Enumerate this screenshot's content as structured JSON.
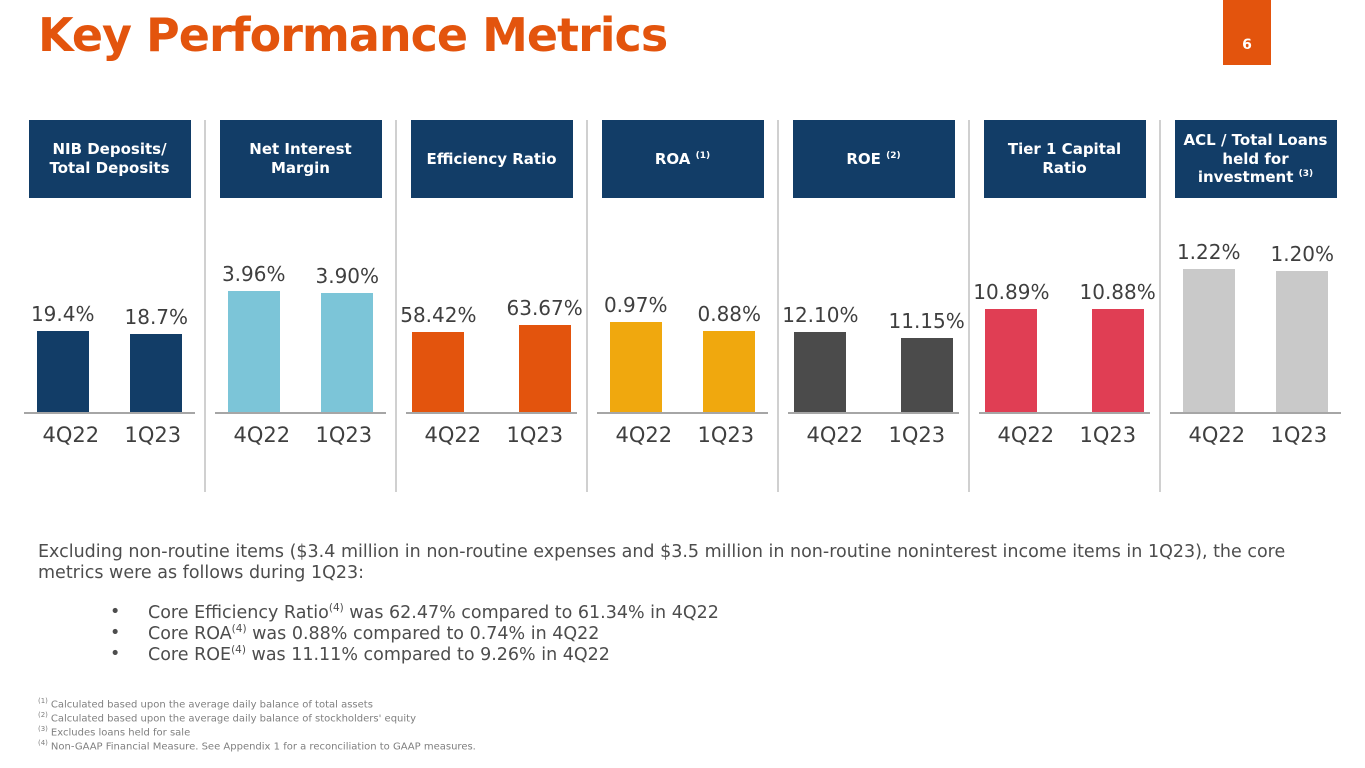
{
  "slide": {
    "title": "Key Performance Metrics",
    "page_number": "6",
    "accent_color": "#E3540D",
    "header_bg_color": "#123D67"
  },
  "chart_data": [
    {
      "type": "bar",
      "title": "NIB Deposits/ Total Deposits",
      "title_sup": "",
      "categories": [
        "4Q22",
        "1Q23"
      ],
      "values": [
        19.4,
        18.7
      ],
      "labels": [
        "19.4%",
        "18.7%"
      ],
      "bar_color": "#123D67",
      "ylim": [
        0,
        36
      ],
      "grid": false,
      "legend": "none"
    },
    {
      "type": "bar",
      "title": "Net Interest Margin",
      "title_sup": "",
      "categories": [
        "4Q22",
        "1Q23"
      ],
      "values": [
        3.96,
        3.9
      ],
      "labels": [
        "3.96%",
        "3.90%"
      ],
      "bar_color": "#7CC5D8",
      "ylim": [
        0,
        4.9
      ],
      "grid": false,
      "legend": "none"
    },
    {
      "type": "bar",
      "title": "Efficiency Ratio",
      "title_sup": "",
      "categories": [
        "4Q22",
        "1Q23"
      ],
      "values": [
        58.42,
        63.67
      ],
      "labels": [
        "58.42%",
        "63.67%"
      ],
      "bar_color": "#E3540D",
      "ylim": [
        0,
        110
      ],
      "grid": false,
      "legend": "none"
    },
    {
      "type": "bar",
      "title": "ROA",
      "title_sup": "(1)",
      "categories": [
        "4Q22",
        "1Q23"
      ],
      "values": [
        0.97,
        0.88
      ],
      "labels": [
        "0.97%",
        "0.88%"
      ],
      "bar_color": "#F0A80E",
      "ylim": [
        0,
        1.62
      ],
      "grid": false,
      "legend": "none"
    },
    {
      "type": "bar",
      "title": "ROE",
      "title_sup": "(2)",
      "categories": [
        "4Q22",
        "1Q23"
      ],
      "values": [
        12.1,
        11.15
      ],
      "labels": [
        "12.10%",
        "11.15%"
      ],
      "bar_color": "#4B4B4B",
      "ylim": [
        0,
        22.6
      ],
      "grid": false,
      "legend": "none"
    },
    {
      "type": "bar",
      "title": "Tier 1 Capital Ratio",
      "title_sup": "",
      "categories": [
        "4Q22",
        "1Q23"
      ],
      "values": [
        10.89,
        10.88
      ],
      "labels": [
        "10.89%",
        "10.88%"
      ],
      "bar_color": "#E03E54",
      "ylim": [
        0,
        15.9
      ],
      "grid": false,
      "legend": "none"
    },
    {
      "type": "bar",
      "title": "ACL / Total Loans held for investment",
      "title_sup": "(3)",
      "categories": [
        "4Q22",
        "1Q23"
      ],
      "values": [
        1.22,
        1.2
      ],
      "labels": [
        "1.22%",
        "1.20%"
      ],
      "bar_color": "#C9C9C9",
      "ylim": [
        0,
        1.28
      ],
      "grid": false,
      "legend": "none"
    }
  ],
  "commentary": {
    "intro": "Excluding non-routine items ($3.4 million in non-routine expenses and $3.5 million in non-routine noninterest income items in 1Q23), the core metrics were as follows during 1Q23:",
    "bullets": [
      {
        "pre": "Core Efficiency Ratio",
        "sup": "(4)",
        "post": " was 62.47% compared to 61.34% in 4Q22"
      },
      {
        "pre": "Core ROA",
        "sup": "(4)",
        "post": " was 0.88% compared to 0.74% in 4Q22"
      },
      {
        "pre": "Core ROE",
        "sup": "(4)",
        "post": " was 11.11% compared to 9.26% in 4Q22"
      }
    ]
  },
  "footnotes": [
    {
      "sup": "(1)",
      "text": "Calculated based upon the average daily balance of total assets"
    },
    {
      "sup": "(2)",
      "text": "Calculated based upon the average daily balance of stockholders' equity"
    },
    {
      "sup": "(3)",
      "text": "Excludes loans held for sale"
    },
    {
      "sup": "(4)",
      "text": "Non-GAAP Financial Measure. See Appendix 1 for a reconciliation to GAAP measures."
    }
  ]
}
